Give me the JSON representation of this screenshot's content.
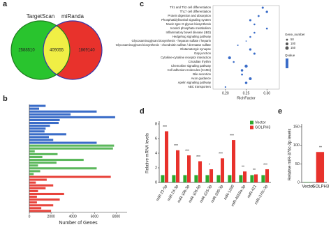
{
  "chart_data": [
    {
      "type": "venn",
      "panel": "a",
      "sets": [
        "TargetScan",
        "miRanda"
      ],
      "values": [
        2588510,
        409055,
        1869140
      ],
      "colors": [
        "#29c42e",
        "#e8322c"
      ],
      "overlap_color": "#f0ef45"
    },
    {
      "type": "hbar",
      "panel": "b",
      "x_label": "Number of Genes",
      "xlim": [
        0,
        9000
      ],
      "xticks": [
        0,
        2000,
        4000,
        6000,
        8000
      ],
      "groups": [
        {
          "color": "#3a6cc8",
          "categories": [
            null,
            null,
            null,
            null,
            null,
            null,
            null,
            null,
            null,
            null,
            null,
            null,
            null,
            null
          ],
          "values": [
            1500,
            900,
            6200,
            3800,
            7900,
            2800,
            2700,
            1900,
            1500,
            1400,
            3400,
            1800,
            2200,
            6200
          ]
        },
        {
          "color": "#5cb85c",
          "categories": [
            null,
            null,
            null,
            null,
            null,
            null,
            null,
            null,
            null,
            null,
            null
          ],
          "values": [
            7800,
            7700,
            500,
            2600,
            1200,
            5000,
            2500,
            800,
            6200,
            1000,
            400
          ]
        },
        {
          "color": "#e8443c",
          "categories": [
            null,
            null,
            null,
            null,
            null,
            null,
            null,
            null,
            null,
            null,
            null,
            null,
            null
          ],
          "values": [
            7500,
            1600,
            600,
            2200,
            1500,
            800,
            3200,
            700,
            2800,
            700,
            2200,
            1100,
            2000
          ]
        }
      ]
    },
    {
      "type": "dot",
      "panel": "c",
      "x_label": "RichFactor",
      "xlim": [
        0.17,
        0.33
      ],
      "xticks": [
        {
          "value": 0.2,
          "label": "0.20"
        },
        {
          "value": 0.25,
          "label": "0.25"
        },
        {
          "value": 0.3,
          "label": "0.30"
        }
      ],
      "categories": [
        "Th1 and Th2 cell differentiation",
        "Th17 cell differentiation",
        "Protein digestion and absorption",
        "Phosphatidylinositol signaling system",
        "Mucin type O-glycan biosynthesis",
        "Inositol phosphate metabolism",
        "Inflammatory bowel disease (IBD)",
        "Hedgehog signaling pathway",
        "Glycosaminoglycan biosynthesis - heparan sulfate / heparin",
        "Glycosaminoglycan biosynthesis - chondroitin sulfate / dermatan sulfate",
        "Glutamatergic synapse",
        "Gap junction",
        "Cytokine-cytokine receptor interaction",
        "Circadian rhythm",
        "Chemokine signaling pathway",
        "Cell adhesion molecules (CAMs)",
        "Bile secretion",
        "Axon guidance",
        "Apelin signaling pathway",
        "ABC transporters"
      ],
      "x": [
        0.29,
        0.3,
        0.28,
        0.26,
        0.27,
        0.3,
        0.27,
        0.26,
        0.25,
        0.23,
        0.26,
        0.27,
        0.21,
        0.22,
        0.25,
        0.24,
        0.24,
        0.26,
        0.25,
        0.2
      ],
      "sizes": [
        60,
        70,
        50,
        60,
        40,
        50,
        40,
        40,
        20,
        25,
        70,
        60,
        110,
        40,
        120,
        80,
        50,
        100,
        80,
        30
      ],
      "size_title": "Gene_number",
      "size_legend": [
        50,
        100,
        150
      ],
      "color_title": "Qvalue",
      "color": "#3a6cc8"
    },
    {
      "type": "bar",
      "panel": "d",
      "y_label": "Relative mRNA levels",
      "ylim": [
        0,
        8
      ],
      "yticks": [
        0,
        2,
        4,
        6,
        8
      ],
      "categories": [
        "miR-21-5p",
        "miR-24-3p",
        "miR-19b-3p",
        "miR-106-5p",
        "miR-223-3p",
        "miR-299-3p",
        "miR-1290",
        "miR-4659a-3p",
        "miR-421",
        "miR-376c-3p"
      ],
      "series": [
        {
          "name": "Vector",
          "color": "#2ea82e",
          "values": [
            1,
            1,
            1,
            1,
            1,
            1,
            1,
            1,
            1,
            1
          ]
        },
        {
          "name": "GOLPH3",
          "color": "#e8322c",
          "values": [
            7,
            4.4,
            3.7,
            2.9,
            1.8,
            3.3,
            5.8,
            1.5,
            1.1,
            1.8
          ]
        }
      ],
      "annotations": [
        "***",
        "***",
        "***",
        "***",
        "*",
        "***",
        "***",
        "**",
        "**",
        "***"
      ]
    },
    {
      "type": "bar",
      "panel": "e",
      "y_label": "Relative miR-376c-3p levels",
      "ylim": [
        0,
        150
      ],
      "yticks": [
        0,
        50,
        100,
        150
      ],
      "categories": [
        "Vector",
        "GOLPH3"
      ],
      "values": [
        1,
        82
      ],
      "colors": [
        "#2ea82e",
        "#e8322c"
      ],
      "annotations": [
        null,
        "**"
      ]
    }
  ]
}
